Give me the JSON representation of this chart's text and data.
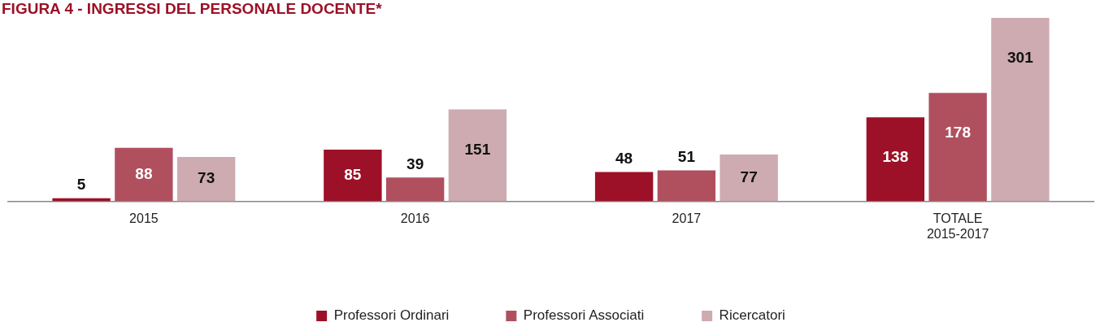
{
  "chart_data": {
    "type": "bar",
    "title": "FIGURA 4 - INGRESSI DEL PERSONALE DOCENTE*",
    "categories": [
      "2015",
      "2016",
      "2017",
      "TOTALE 2015-2017"
    ],
    "series": [
      {
        "name": "Professori Ordinari",
        "color": "#9c1127",
        "values": [
          5,
          85,
          48,
          138
        ]
      },
      {
        "name": "Professori Associati",
        "color": "#b0505f",
        "values": [
          88,
          39,
          51,
          178
        ]
      },
      {
        "name": "Ricercatori",
        "color": "#cdabb0",
        "values": [
          73,
          151,
          77,
          301
        ]
      }
    ],
    "data_labels": true,
    "grid": false,
    "legend": "bottom"
  }
}
